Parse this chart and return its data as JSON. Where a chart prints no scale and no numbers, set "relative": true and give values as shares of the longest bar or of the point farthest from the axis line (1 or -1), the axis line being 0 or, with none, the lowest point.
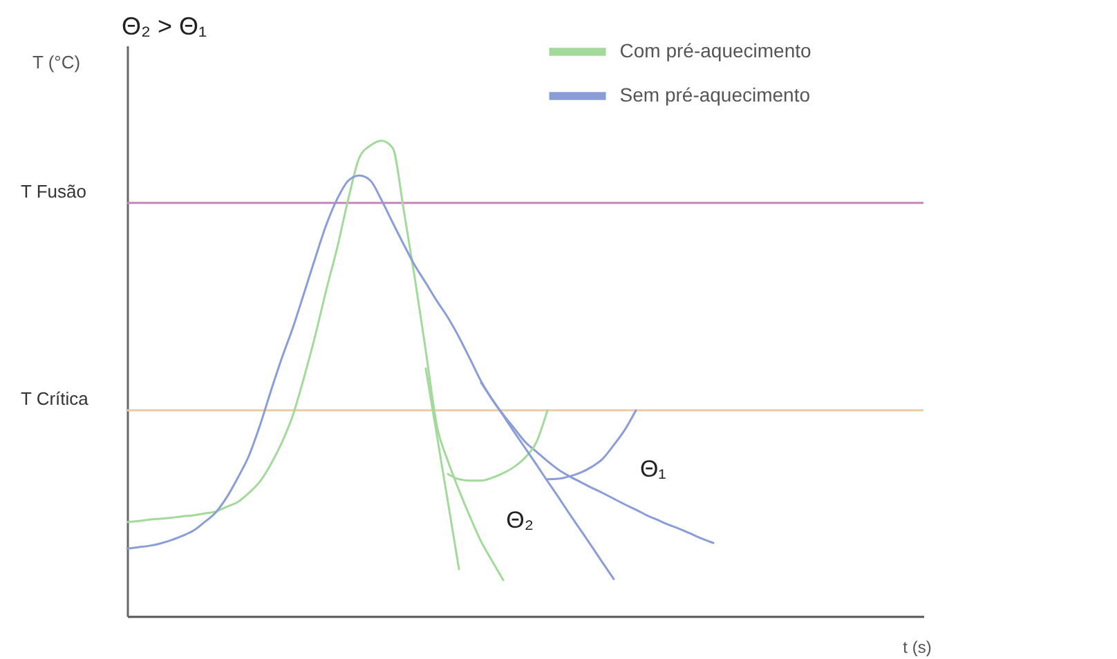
{
  "chart_data": {
    "type": "line",
    "title": "Θ₂ > Θ₁",
    "xlabel": "t (s)",
    "ylabel": "T (°C)",
    "relative": true,
    "legend": "top right",
    "categories": [
      null,
      null,
      null,
      null,
      null,
      null,
      null,
      null,
      null,
      null,
      null,
      null,
      null,
      null,
      null,
      null,
      null,
      null,
      null,
      null,
      null,
      null,
      null,
      null,
      null,
      null,
      null,
      null,
      null,
      null,
      null,
      null,
      null,
      null,
      null,
      null,
      null,
      null,
      null,
      null,
      null,
      null,
      null,
      null,
      null,
      null,
      null,
      null,
      null,
      null,
      null,
      null,
      null,
      null,
      null,
      null,
      null,
      null,
      null,
      null,
      null,
      null,
      null,
      null,
      null,
      null,
      null,
      null,
      null,
      null,
      null,
      null,
      null
    ],
    "series": [
      {
        "name": "Com pré-aquecimento",
        "color": "#a3d99b",
        "values": [
          0.198,
          0.2,
          0.203,
          0.205,
          0.207,
          0.21,
          0.212,
          0.216,
          0.22,
          0.23,
          0.24,
          0.259,
          0.283,
          0.32,
          0.366,
          0.424,
          0.503,
          0.59,
          0.686,
          0.776,
          0.878,
          0.965,
          0.99,
          1.0,
          0.985,
          0.855,
          0.712,
          0.558,
          0.401,
          0.326,
          0.265,
          0.209,
          0.157,
          0.116,
          0.076,
          null,
          null,
          null,
          null,
          null,
          null,
          null,
          null,
          null,
          null,
          null,
          null,
          null,
          null,
          null,
          null,
          null,
          null,
          null,
          null,
          null,
          null,
          null,
          null,
          null,
          null,
          null,
          null,
          null,
          null,
          null,
          null,
          null,
          null,
          null,
          null,
          null,
          null
        ]
      },
      {
        "name": "Sem pré-aquecimento",
        "color": "#8b9dd6",
        "values": [
          0.142,
          0.145,
          0.148,
          0.153,
          0.16,
          0.169,
          0.18,
          0.198,
          0.218,
          0.25,
          0.291,
          0.337,
          0.401,
          0.474,
          0.544,
          0.608,
          0.68,
          0.753,
          0.823,
          0.878,
          0.916,
          0.927,
          0.916,
          0.875,
          0.828,
          0.782,
          0.738,
          0.701,
          0.663,
          0.628,
          0.587,
          0.541,
          0.494,
          0.456,
          0.424,
          0.395,
          0.366,
          0.346,
          0.326,
          0.308,
          0.294,
          0.282,
          0.27,
          0.259,
          0.247,
          0.235,
          0.224,
          0.212,
          0.202,
          0.192,
          0.183,
          0.173,
          0.163,
          0.154,
          null,
          null,
          null,
          null,
          null,
          null,
          null,
          null,
          null,
          null,
          null,
          null,
          null,
          null,
          null,
          null,
          null,
          null,
          null
        ]
      },
      {
        "type": "line",
        "color": "#a3d99b",
        "values": [
          null,
          null,
          null,
          null,
          null,
          null,
          null,
          null,
          null,
          null,
          null,
          null,
          null,
          null,
          null,
          null,
          null,
          null,
          null,
          null,
          null,
          null,
          null,
          null,
          null,
          null,
          null,
          0.521,
          0.381,
          0.24,
          0.099,
          null,
          null,
          null,
          null,
          null,
          null,
          null,
          null,
          null,
          null,
          null,
          null,
          null,
          null,
          null,
          null,
          null,
          null,
          null,
          null,
          null,
          null,
          null,
          null,
          null,
          null,
          null,
          null,
          null,
          null,
          null,
          null,
          null,
          null,
          null,
          null,
          null,
          null,
          null,
          null,
          null,
          null
        ]
      },
      {
        "type": "line",
        "color": "#a3d99b",
        "values": [
          null,
          null,
          null,
          null,
          null,
          null,
          null,
          null,
          null,
          null,
          null,
          null,
          null,
          null,
          null,
          null,
          null,
          null,
          null,
          null,
          null,
          null,
          null,
          null,
          null,
          null,
          null,
          null,
          null,
          0.299,
          0.288,
          0.285,
          0.285,
          0.291,
          0.301,
          0.314,
          0.334,
          0.366,
          0.433,
          null,
          null,
          null,
          null,
          null,
          null,
          null,
          null,
          null,
          null,
          null,
          null,
          null,
          null,
          null,
          null,
          null,
          null,
          null,
          null,
          null,
          null,
          null,
          null,
          null,
          null,
          null,
          null,
          null,
          null,
          null,
          null,
          null,
          null
        ]
      },
      {
        "type": "line",
        "color": "#8b9dd6",
        "values": [
          null,
          null,
          null,
          null,
          null,
          null,
          null,
          null,
          null,
          null,
          null,
          null,
          null,
          null,
          null,
          null,
          null,
          null,
          null,
          null,
          null,
          null,
          null,
          null,
          null,
          null,
          null,
          null,
          null,
          null,
          null,
          null,
          0.491,
          0.456,
          0.422,
          0.387,
          0.353,
          0.319,
          0.284,
          0.25,
          0.215,
          0.181,
          0.147,
          0.112,
          0.078,
          null,
          null,
          null,
          null,
          null,
          null,
          null,
          null,
          null,
          null,
          null,
          null,
          null,
          null,
          null,
          null,
          null,
          null,
          null,
          null,
          null,
          null,
          null,
          null,
          null,
          null,
          null,
          null
        ]
      },
      {
        "type": "line",
        "color": "#8b9dd6",
        "values": [
          null,
          null,
          null,
          null,
          null,
          null,
          null,
          null,
          null,
          null,
          null,
          null,
          null,
          null,
          null,
          null,
          null,
          null,
          null,
          null,
          null,
          null,
          null,
          null,
          null,
          null,
          null,
          null,
          null,
          null,
          null,
          null,
          null,
          null,
          null,
          null,
          null,
          null,
          0.288,
          0.289,
          0.294,
          0.302,
          0.314,
          0.331,
          0.36,
          0.392,
          0.433,
          null,
          null,
          null,
          null,
          null,
          null,
          null,
          null,
          null,
          null,
          null,
          null,
          null,
          null,
          null,
          null,
          null,
          null,
          null,
          null,
          null,
          null,
          null,
          null,
          null,
          null
        ]
      }
    ],
    "ref_lines": [
      {
        "axis": "y",
        "value": 0.869,
        "label": "T Fusão",
        "color": "#c785bd"
      },
      {
        "axis": "y",
        "value": 0.433,
        "label": "T Crítica",
        "color": "#eac9a6"
      }
    ],
    "annotations": [
      "Θ₁",
      "Θ₂"
    ]
  }
}
